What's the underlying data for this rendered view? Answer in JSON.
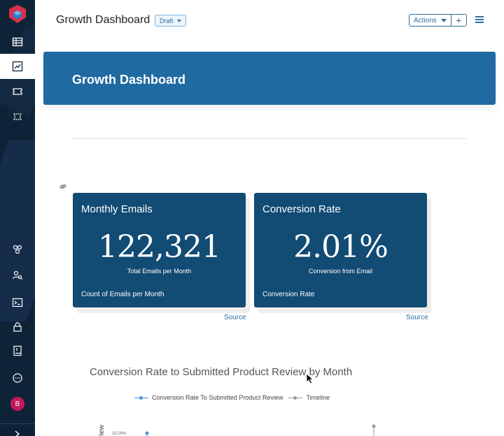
{
  "header": {
    "title": "Growth Dashboard",
    "status": "Draft",
    "actions_label": "Actions",
    "add_label": "+"
  },
  "sidebar": {
    "items": [
      {
        "icon": "table-icon"
      },
      {
        "icon": "dashboard-icon",
        "active": true
      },
      {
        "icon": "ticket-icon"
      },
      {
        "icon": "tag-icon"
      },
      {
        "icon": "nodes-icon"
      },
      {
        "icon": "people-search-icon"
      },
      {
        "icon": "terminal-icon"
      },
      {
        "icon": "lock-icon"
      },
      {
        "icon": "book-icon"
      },
      {
        "icon": "chat-icon"
      }
    ],
    "avatar_initial": "B",
    "avatar_color": "#c2185b"
  },
  "banner": {
    "title": "Growth Dashboard",
    "color": "#1f6aa0"
  },
  "kpis": [
    {
      "title": "Monthly Emails",
      "value": "122,321",
      "subtitle": "Total Emails per Month",
      "footer": "Count of Emails per Month",
      "source_label": "Source"
    },
    {
      "title": "Conversion Rate",
      "value": "2.01%",
      "subtitle": "Conversion from Email",
      "footer": "Conversion Rate",
      "source_label": "Source"
    }
  ],
  "chart": {
    "title": "Conversion Rate to Submitted Product Review by Month",
    "legend": [
      {
        "label": "Conversion Rate To Submitted Product Review",
        "color": "#4a90d9"
      },
      {
        "label": "Timeline",
        "color": "#999999"
      }
    ],
    "y_axis_label": "view",
    "first_tick": "20.00%"
  },
  "colors": {
    "sidebar": "#0f2338",
    "card": "#124b74",
    "accent": "#2f6f9e"
  }
}
